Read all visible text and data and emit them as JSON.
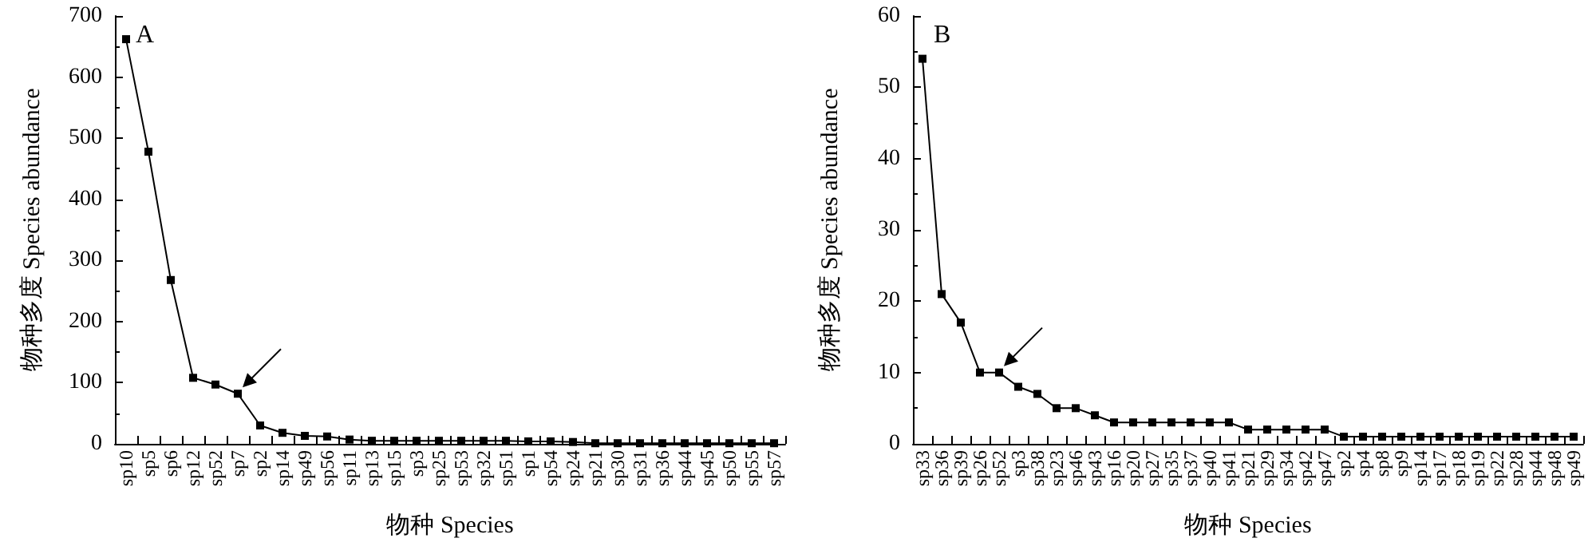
{
  "chart_data": [
    {
      "type": "line",
      "annotations": [
        "A"
      ],
      "xlabel": "物种 Species",
      "ylabel": "物种多度 Species abundance",
      "categories": [
        "sp10",
        "sp5",
        "sp6",
        "sp12",
        "sp52",
        "sp7",
        "sp2",
        "sp14",
        "sp49",
        "sp56",
        "sp11",
        "sp13",
        "sp15",
        "sp3",
        "sp25",
        "sp53",
        "sp32",
        "sp51",
        "sp1",
        "sp54",
        "sp24",
        "sp21",
        "sp30",
        "sp31",
        "sp36",
        "sp44",
        "sp45",
        "sp50",
        "sp55",
        "sp57"
      ],
      "series": [
        {
          "color": "#000000",
          "values": [
            662,
            478,
            268,
            108,
            97,
            82,
            30,
            18,
            13,
            12,
            7,
            5,
            5,
            5,
            5,
            5,
            5,
            5,
            4,
            4,
            3,
            1,
            1,
            1,
            1,
            1,
            1,
            1,
            1,
            1
          ]
        }
      ],
      "ylim": [
        0,
        700
      ],
      "yticks": [
        0,
        100,
        200,
        300,
        400,
        500,
        600,
        700
      ],
      "grid": false,
      "marker": "square",
      "line_style": "solid"
    },
    {
      "type": "line",
      "annotations": [
        "B"
      ],
      "xlabel": "物种 Species",
      "ylabel": "物种多度 Species abundance",
      "categories": [
        "sp33",
        "sp36",
        "sp39",
        "sp26",
        "sp52",
        "sp3",
        "sp38",
        "sp23",
        "sp46",
        "sp43",
        "sp16",
        "sp20",
        "sp27",
        "sp35",
        "sp37",
        "sp40",
        "sp41",
        "sp21",
        "sp29",
        "sp34",
        "sp42",
        "sp47",
        "sp2",
        "sp4",
        "sp8",
        "sp9",
        "sp14",
        "sp17",
        "sp18",
        "sp19",
        "sp22",
        "sp28",
        "sp44",
        "sp48",
        "sp49"
      ],
      "series": [
        {
          "color": "#000000",
          "values": [
            54,
            21,
            17,
            10,
            10,
            8,
            7,
            5,
            5,
            4,
            3,
            3,
            3,
            3,
            3,
            3,
            3,
            2,
            2,
            2,
            2,
            2,
            1,
            1,
            1,
            1,
            1,
            1,
            1,
            1,
            1,
            1,
            1,
            1,
            1
          ]
        }
      ],
      "ylim": [
        0,
        60
      ],
      "yticks": [
        0,
        10,
        20,
        30,
        40,
        50,
        60
      ],
      "grid": false,
      "marker": "square",
      "line_style": "solid"
    }
  ]
}
